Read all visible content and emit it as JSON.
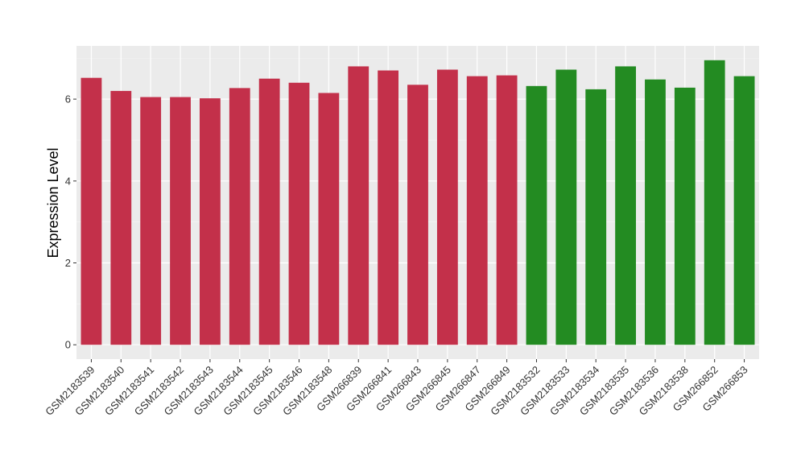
{
  "chart_data": {
    "type": "bar",
    "title": "",
    "xlabel": "",
    "ylabel": "Expression Level",
    "ylim": [
      -0.35,
      7.3
    ],
    "yticks": [
      0,
      2,
      4,
      6
    ],
    "grid": true,
    "background": "#ebebeb",
    "categories": [
      "GSM2183539",
      "GSM2183540",
      "GSM2183541",
      "GSM2183542",
      "GSM2183543",
      "GSM2183544",
      "GSM2183545",
      "GSM2183546",
      "GSM2183548",
      "GSM266839",
      "GSM266841",
      "GSM266843",
      "GSM266845",
      "GSM266847",
      "GSM266849",
      "GSM2183532",
      "GSM2183533",
      "GSM2183534",
      "GSM2183535",
      "GSM2183536",
      "GSM2183538",
      "GSM266852",
      "GSM266853"
    ],
    "values": [
      6.52,
      6.2,
      6.05,
      6.05,
      6.02,
      6.27,
      6.5,
      6.4,
      6.15,
      6.8,
      6.7,
      6.35,
      6.72,
      6.56,
      6.58,
      6.32,
      6.72,
      6.24,
      6.8,
      6.48,
      6.28,
      6.95,
      6.56
    ],
    "bar_colors": [
      "#c3304a",
      "#c3304a",
      "#c3304a",
      "#c3304a",
      "#c3304a",
      "#c3304a",
      "#c3304a",
      "#c3304a",
      "#c3304a",
      "#c3304a",
      "#c3304a",
      "#c3304a",
      "#c3304a",
      "#c3304a",
      "#c3304a",
      "#238b22",
      "#238b22",
      "#238b22",
      "#238b22",
      "#238b22",
      "#238b22",
      "#238b22",
      "#238b22"
    ]
  }
}
